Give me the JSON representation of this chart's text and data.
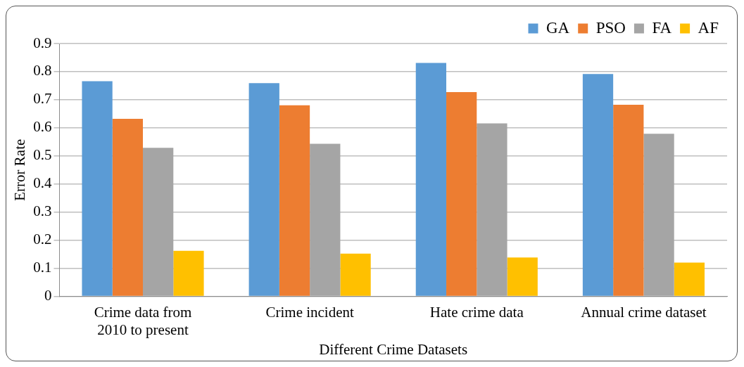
{
  "chart_data": {
    "type": "bar",
    "xlabel": "Different Crime Datasets",
    "ylabel": "Error Rate",
    "categories": [
      "Crime data from 2010 to present",
      "Crime incident",
      "Hate crime data",
      "Annual crime dataset"
    ],
    "series": [
      {
        "name": "GA",
        "color": "#5b9bd5",
        "values": [
          0.766,
          0.759,
          0.831,
          0.792
        ]
      },
      {
        "name": "PSO",
        "color": "#ed7d31",
        "values": [
          0.632,
          0.68,
          0.727,
          0.682
        ]
      },
      {
        "name": "FA",
        "color": "#a5a5a5",
        "values": [
          0.529,
          0.543,
          0.616,
          0.579
        ]
      },
      {
        "name": "AF",
        "color": "#ffc000",
        "values": [
          0.162,
          0.152,
          0.138,
          0.12
        ]
      }
    ],
    "ylim": [
      0,
      0.9
    ],
    "yticks": [
      0,
      0.1,
      0.2,
      0.3,
      0.4,
      0.5,
      0.6,
      0.7,
      0.8,
      0.9
    ],
    "grid": "y",
    "legend": "top right"
  }
}
